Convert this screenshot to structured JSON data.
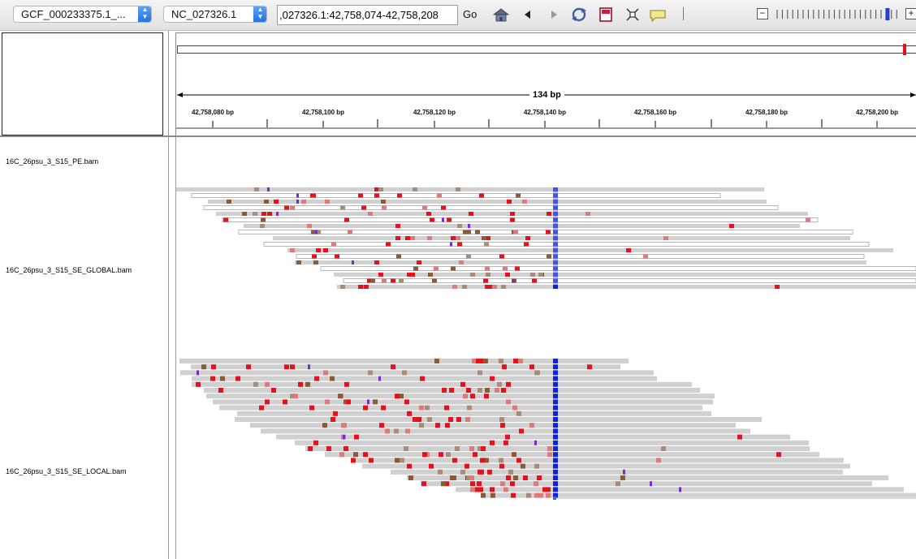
{
  "toolbar": {
    "genome_select": "GCF_000233375.1_...",
    "chrom_select": "NC_027326.1",
    "locus_input": ",027326.1:42,758,074-42,758,208",
    "go_label": "Go",
    "icons": [
      "home-icon",
      "back-arrow-icon",
      "forward-arrow-icon",
      "refresh-icon",
      "ruler-roi-icon",
      "fit-window-icon",
      "popup-info-icon"
    ],
    "zoom": {
      "ticks": 24,
      "level": 0.92
    }
  },
  "ruler": {
    "span_label": "134 bp",
    "tick_labels": [
      "42,758,080 bp",
      "42,758,100 bp",
      "42,758,120 bp",
      "42,758,140 bp",
      "42,758,160 bp",
      "42,758,180 bp",
      "42,758,200 bp"
    ],
    "ideogram_marker_color": "#e8101a"
  },
  "tracks": [
    {
      "name": "16C_26psu_3_S15_PE.bam"
    },
    {
      "name": "16C_26psu_3_S15_SE_GLOBAL.bam"
    },
    {
      "name": "16C_26psu_3_S15_SE_LOCAL.bam"
    }
  ],
  "colors": {
    "read": "#d0d0d0",
    "mismatch_red": "#e8101a",
    "mismatch_brown": "#8b5a36",
    "mismatch_pink": "#e07a7a",
    "mismatch_tan": "#a88c78",
    "insertion_purple": "#7a2ad4",
    "coverage_blue": "#1020e0"
  }
}
